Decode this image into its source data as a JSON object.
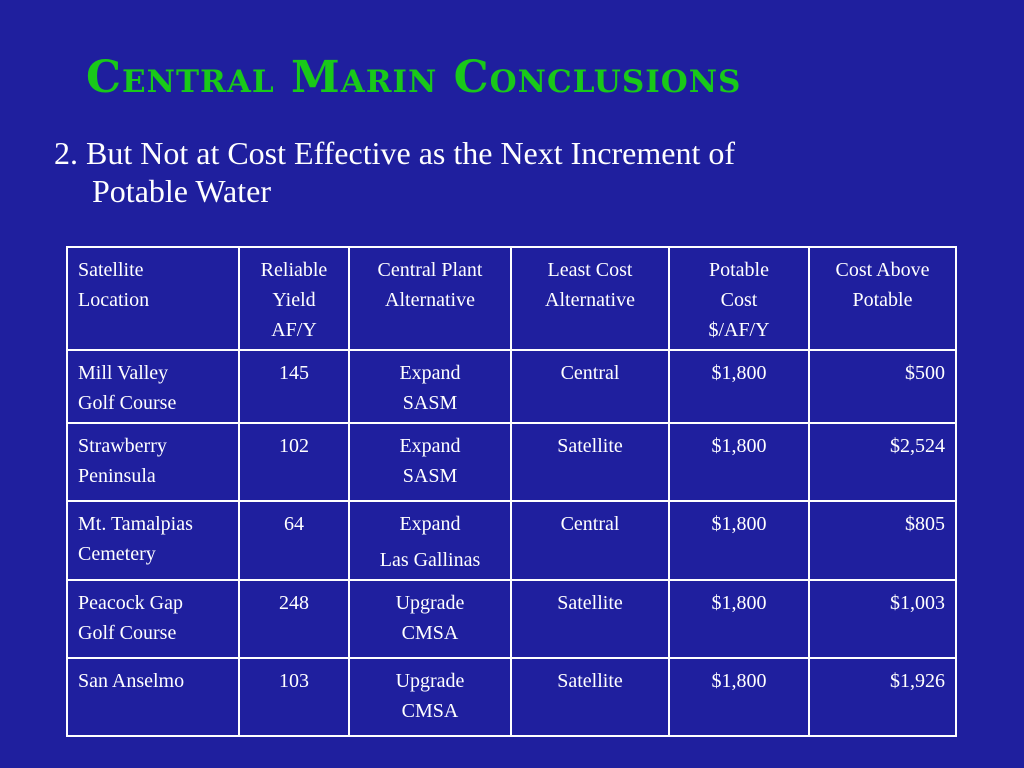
{
  "slide": {
    "title": "Central Marin Conclusions",
    "subtitle_number": "2.",
    "subtitle_line1": "But Not at Cost Effective as the Next Increment of",
    "subtitle_line2": "Potable Water"
  },
  "table": {
    "headers": [
      [
        "Satellite",
        "Location"
      ],
      [
        "Reliable",
        "Yield",
        "AF/Y"
      ],
      [
        "Central Plant",
        "Alternative"
      ],
      [
        "Least Cost",
        "Alternative"
      ],
      [
        "Potable",
        "Cost",
        "$/AF/Y"
      ],
      [
        "Cost Above",
        "Potable"
      ]
    ],
    "rows": [
      {
        "location": [
          "Mill Valley",
          "Golf Course"
        ],
        "yield": "145",
        "central_plant": [
          "Expand",
          "SASM"
        ],
        "least_cost": "Central",
        "potable_cost": "$1,800",
        "cost_above": "$500"
      },
      {
        "location": [
          "Strawberry",
          "Peninsula"
        ],
        "yield": "102",
        "central_plant": [
          "Expand",
          "SASM"
        ],
        "least_cost": "Satellite",
        "potable_cost": "$1,800",
        "cost_above": "$2,524"
      },
      {
        "location": [
          "Mt. Tamalpias",
          "Cemetery"
        ],
        "yield": "64",
        "central_plant": [
          "Expand",
          "Las Gallinas"
        ],
        "least_cost": "Central",
        "potable_cost": "$1,800",
        "cost_above": "$805"
      },
      {
        "location": [
          "Peacock Gap",
          "Golf Course"
        ],
        "yield": "248",
        "central_plant": [
          "Upgrade",
          "CMSA"
        ],
        "least_cost": "Satellite",
        "potable_cost": "$1,800",
        "cost_above": "$1,003"
      },
      {
        "location": [
          "San Anselmo"
        ],
        "yield": "103",
        "central_plant": [
          "Upgrade",
          "CMSA"
        ],
        "least_cost": "Satellite",
        "potable_cost": "$1,800",
        "cost_above": "$1,926"
      }
    ]
  },
  "colors": {
    "background": "#1f1f9e",
    "title": "#19c919",
    "text": "#ffffff",
    "table_border": "#ffffff"
  }
}
